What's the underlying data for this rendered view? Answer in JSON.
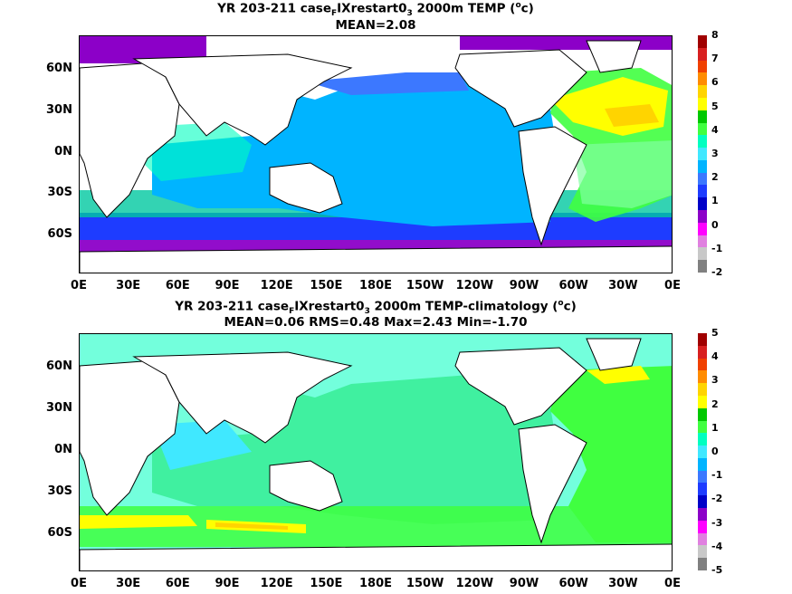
{
  "panel1": {
    "title_pre": "YR 203-211 case",
    "title_sub1": "F",
    "title_mid": "IXrestart0",
    "title_sub2": "3",
    "title_post": " 2000m TEMP (",
    "title_sup": "o",
    "title_end": "c)",
    "stats": "MEAN=2.08",
    "colorbar_labels": [
      "8",
      "7",
      "6",
      "5",
      "4",
      "3",
      "2",
      "1",
      "0",
      "-1",
      "-2"
    ],
    "colorbar_colors": [
      "#a00000",
      "#d82020",
      "#f04000",
      "#ff8c00",
      "#ffd400",
      "#ffff00",
      "#00c800",
      "#40ff40",
      "#00ffc0",
      "#40e8ff",
      "#00b4ff",
      "#3c78ff",
      "#1e3cff",
      "#0000c8",
      "#8c00c8",
      "#ff00ff",
      "#e080e0",
      "#c8c8c8",
      "#808080"
    ]
  },
  "panel2": {
    "title_pre": "YR 203-211 case",
    "title_sub1": "F",
    "title_mid": "IXrestart0",
    "title_sub2": "3",
    "title_post": " 2000m TEMP-climatology (",
    "title_sup": "o",
    "title_end": "c)",
    "stats": "MEAN=0.06   RMS=0.48   Max=2.43   Min=-1.70",
    "colorbar_labels": [
      "5",
      "4",
      "3",
      "2",
      "1",
      "0",
      "-1",
      "-2",
      "-3",
      "-4",
      "-5"
    ],
    "colorbar_colors": [
      "#a00000",
      "#d82020",
      "#f04000",
      "#ff8c00",
      "#ffd400",
      "#ffff00",
      "#00c800",
      "#40ff40",
      "#00ffc0",
      "#40e8ff",
      "#00b4ff",
      "#3c78ff",
      "#1e3cff",
      "#0000c8",
      "#8c00c8",
      "#ff00ff",
      "#e080e0",
      "#c8c8c8",
      "#808080"
    ]
  },
  "lat_labels": [
    "60N",
    "30N",
    "0N",
    "30S",
    "60S"
  ],
  "lon_labels": [
    "0E",
    "30E",
    "60E",
    "90E",
    "120E",
    "150E",
    "180E",
    "150W",
    "120W",
    "90W",
    "60W",
    "30W",
    "0E"
  ]
}
